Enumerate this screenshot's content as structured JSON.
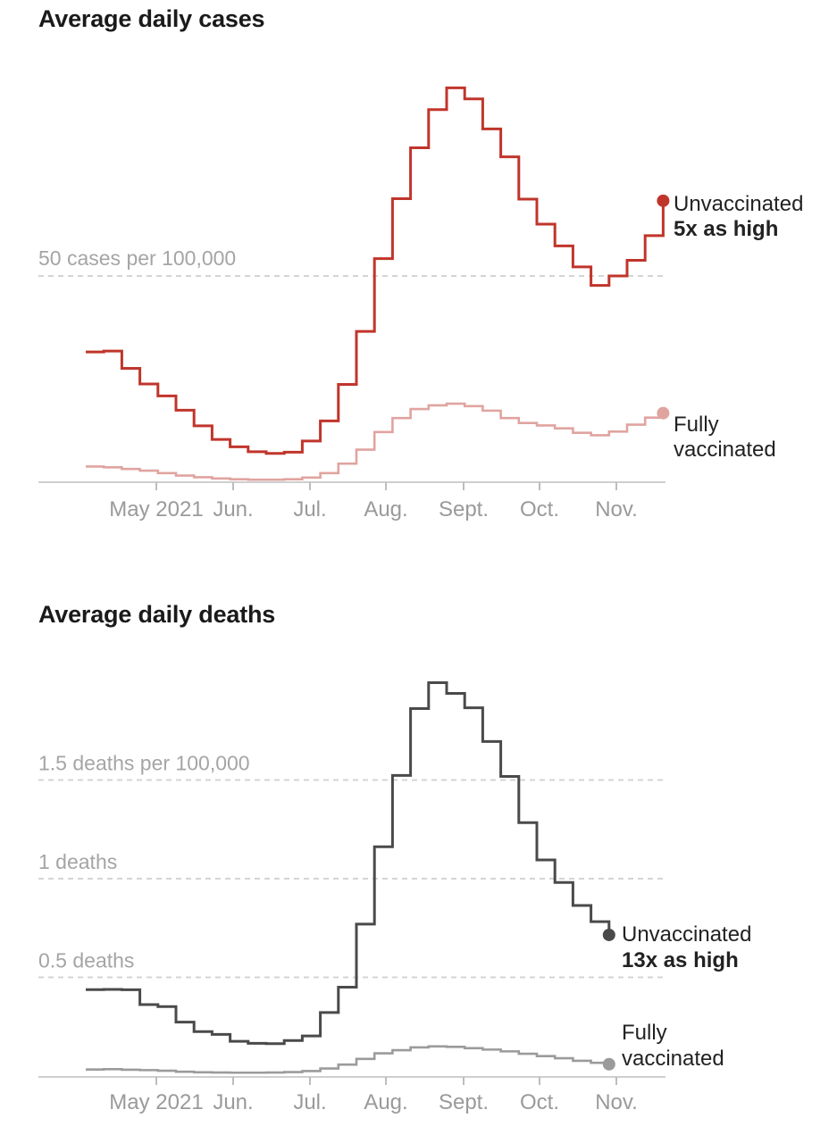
{
  "chart_data": [
    {
      "type": "line",
      "title": "Average daily cases",
      "x_ticks": [
        "May 2021",
        "Jun.",
        "Jul.",
        "Aug.",
        "Sept.",
        "Oct.",
        "Nov."
      ],
      "y_gridlines": [
        {
          "value": 50,
          "label": "50 cases per 100,000"
        }
      ],
      "ylim": [
        0,
        100
      ],
      "step": true,
      "x_weeks_start": "2021-04-04",
      "series": [
        {
          "name": "Unvaccinated",
          "annotation": "5x as high",
          "color": "#c0352b",
          "values": [
            31.5,
            31.7,
            27.5,
            23.7,
            20.8,
            17.3,
            13.5,
            10.2,
            8.4,
            7.2,
            6.8,
            7.1,
            9.8,
            14.7,
            23.6,
            36.5,
            54.2,
            68.8,
            81.2,
            90.5,
            95.8,
            93.1,
            85.8,
            79.0,
            68.7,
            62.6,
            57.3,
            52.2,
            47.7,
            50.0,
            53.8,
            59.8,
            68.3
          ]
        },
        {
          "name": "Fully vaccinated",
          "color": "#e0a4a0",
          "values": [
            3.6,
            3.4,
            3.0,
            2.6,
            2.0,
            1.4,
            1.0,
            0.7,
            0.5,
            0.4,
            0.4,
            0.5,
            0.9,
            2.0,
            4.3,
            7.7,
            12.0,
            15.4,
            17.6,
            18.5,
            18.9,
            18.3,
            17.2,
            15.4,
            14.2,
            13.6,
            12.9,
            11.8,
            11.2,
            12.1,
            13.8,
            15.5,
            16.6
          ]
        }
      ]
    },
    {
      "type": "line",
      "title": "Average daily deaths",
      "x_ticks": [
        "May 2021",
        "Jun.",
        "Jul.",
        "Aug.",
        "Sept.",
        "Oct.",
        "Nov."
      ],
      "y_gridlines": [
        {
          "value": 1.5,
          "label": "1.5 deaths per 100,000"
        },
        {
          "value": 1,
          "label": "1 deaths"
        },
        {
          "value": 0.5,
          "label": "0.5 deaths"
        }
      ],
      "ylim": [
        0,
        2
      ],
      "step": true,
      "x_weeks_start": "2021-04-04",
      "series": [
        {
          "name": "Unvaccinated",
          "annotation": "13x as high",
          "color": "#4a4a4a",
          "values": [
            0.438,
            0.439,
            0.437,
            0.362,
            0.352,
            0.273,
            0.225,
            0.211,
            0.176,
            0.166,
            0.164,
            0.18,
            0.203,
            0.322,
            0.45,
            0.77,
            1.162,
            1.523,
            1.862,
            1.993,
            1.939,
            1.866,
            1.695,
            1.518,
            1.284,
            1.095,
            0.981,
            0.864,
            0.782,
            0.715
          ]
        },
        {
          "name": "Fully vaccinated",
          "color": "#9b9b9b",
          "values": [
            0.033,
            0.035,
            0.032,
            0.03,
            0.027,
            0.022,
            0.019,
            0.018,
            0.017,
            0.017,
            0.018,
            0.02,
            0.025,
            0.038,
            0.058,
            0.087,
            0.115,
            0.131,
            0.145,
            0.15,
            0.148,
            0.141,
            0.134,
            0.125,
            0.113,
            0.101,
            0.09,
            0.077,
            0.067,
            0.06
          ]
        }
      ]
    }
  ]
}
